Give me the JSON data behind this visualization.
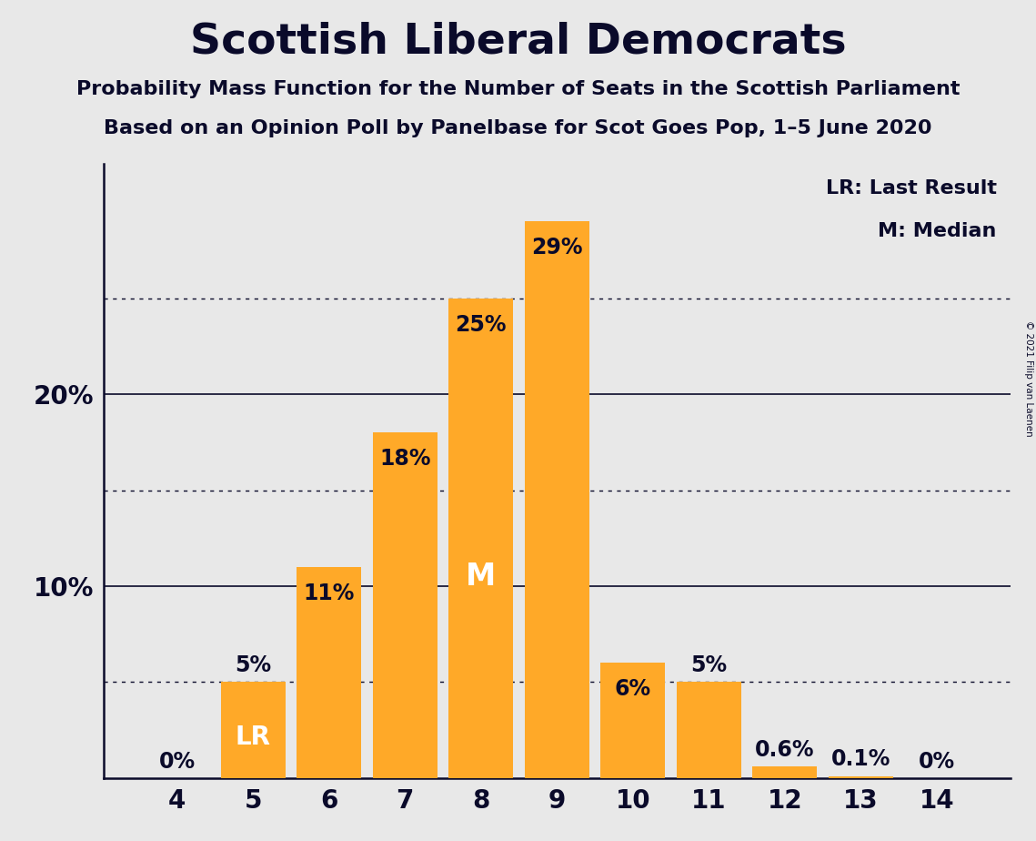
{
  "title": "Scottish Liberal Democrats",
  "subtitle1": "Probability Mass Function for the Number of Seats in the Scottish Parliament",
  "subtitle2": "Based on an Opinion Poll by Panelbase for Scot Goes Pop, 1–5 June 2020",
  "copyright": "© 2021 Filip van Laenen",
  "seats": [
    4,
    5,
    6,
    7,
    8,
    9,
    10,
    11,
    12,
    13,
    14
  ],
  "values": [
    0.0,
    5.0,
    11.0,
    18.0,
    25.0,
    29.0,
    6.0,
    5.0,
    0.6,
    0.1,
    0.0
  ],
  "bar_labels": [
    "0%",
    "5%",
    "11%",
    "18%",
    "25%",
    "29%",
    "6%",
    "5%",
    "0.6%",
    "0.1%",
    "0%"
  ],
  "bar_color": "#FFA928",
  "background_color": "#E8E8E8",
  "text_color": "#0A0A2A",
  "lr_seat": 5,
  "median_seat": 8,
  "yticks": [
    10,
    20
  ],
  "dotted_lines": [
    5,
    15,
    25
  ],
  "ylim": [
    0,
    32
  ],
  "legend_text1": "LR: Last Result",
  "legend_text2": "M: Median",
  "title_fontsize": 34,
  "subtitle_fontsize": 16,
  "bar_label_fontsize": 17,
  "axis_fontsize": 20,
  "legend_fontsize": 16
}
